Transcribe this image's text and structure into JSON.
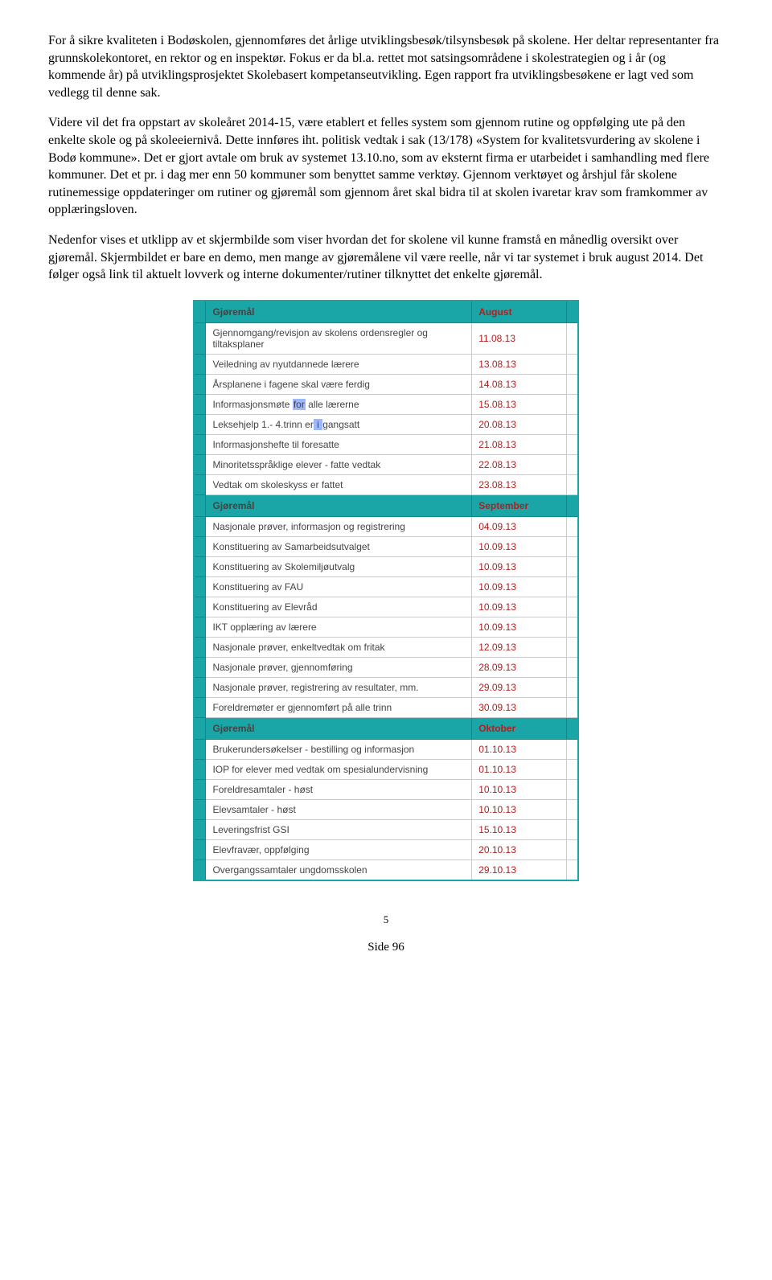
{
  "paragraphs": {
    "p1": "For å sikre kvaliteten i Bodøskolen, gjennomføres det årlige utviklingsbesøk/tilsynsbesøk på skolene. Her deltar representanter fra grunnskolekontoret, en rektor og en inspektør. Fokus er da bl.a. rettet mot satsingsområdene i skolestrategien og i år (og kommende år) på utviklingsprosjektet Skolebasert kompetanseutvikling. Egen rapport fra utviklingsbesøkene er lagt ved som vedlegg til denne sak.",
    "p2": "Videre vil det fra oppstart av skoleåret 2014-15, være etablert et felles system som gjennom rutine og oppfølging ute på den enkelte skole og på skoleeiernivå. Dette innføres iht. politisk vedtak i sak (13/178) «System for kvalitetsvurdering av skolene i Bodø kommune». Det er gjort avtale om bruk av systemet 13.10.no, som av eksternt firma er utarbeidet i samhandling med flere kommuner. Det et pr. i dag mer enn 50 kommuner som benyttet samme verktøy. Gjennom verktøyet og årshjul får skolene rutinemessige oppdateringer om rutiner og gjøremål som gjennom året skal bidra til at skolen ivaretar krav som framkommer av opplæringsloven.",
    "p3": "Nedenfor vises et utklipp av et skjermbilde som viser hvordan det for skolene vil kunne framstå en månedlig oversikt over gjøremål. Skjermbildet er bare en demo, men mange av gjøremålene vil være reelle, når vi tar systemet i bruk august 2014. Det følger også link til aktuelt lovverk og interne dokumenter/rutiner tilknyttet det enkelte gjøremål."
  },
  "table": {
    "header_task": "Gjøremål",
    "lead_glyph": "",
    "trail_glyph": "",
    "sections": [
      {
        "month": "August",
        "rows": [
          {
            "task": "Gjennomgang/revisjon av skolens ordensregler og tiltaksplaner",
            "date": "11.08.13"
          },
          {
            "task": "Veiledning av nyutdannede lærere",
            "date": "13.08.13"
          },
          {
            "task": "Årsplanene i fagene skal være ferdig",
            "date": "14.08.13"
          },
          {
            "task_html": "Informasjonsmøte <span class='highlight-for'>for</span> alle lærerne",
            "date": "15.08.13"
          },
          {
            "task_html": "Leksehjelp 1.- 4.trinn er<span class='cursor-mark'>&nbsp;i&nbsp;</span>gangsatt",
            "date": "20.08.13"
          },
          {
            "task": "Informasjonshefte til foresatte",
            "date": "21.08.13"
          },
          {
            "task": "Minoritetsspråklige elever - fatte vedtak",
            "date": "22.08.13"
          },
          {
            "task": "Vedtak om skoleskyss er fattet",
            "date": "23.08.13"
          }
        ]
      },
      {
        "month": "September",
        "rows": [
          {
            "task": "Nasjonale prøver, informasjon og registrering",
            "date": "04.09.13"
          },
          {
            "task": "Konstituering av Samarbeidsutvalget",
            "date": "10.09.13"
          },
          {
            "task": "Konstituering av Skolemiljøutvalg",
            "date": "10.09.13"
          },
          {
            "task": "Konstituering av FAU",
            "date": "10.09.13"
          },
          {
            "task": "Konstituering av Elevråd",
            "date": "10.09.13"
          },
          {
            "task": "IKT opplæring av lærere",
            "date": "10.09.13"
          },
          {
            "task": "Nasjonale prøver, enkeltvedtak om fritak",
            "date": "12.09.13"
          },
          {
            "task": "Nasjonale prøver, gjennomføring",
            "date": "28.09.13"
          },
          {
            "task": "Nasjonale prøver, registrering av resultater, mm.",
            "date": "29.09.13"
          },
          {
            "task": "Foreldremøter er gjennomført på alle trinn",
            "date": "30.09.13"
          }
        ]
      },
      {
        "month": "Oktober",
        "rows": [
          {
            "task": "Brukerundersøkelser - bestilling og informasjon",
            "date": "01.10.13"
          },
          {
            "task": "IOP for elever med vedtak om spesialundervisning",
            "date": "01.10.13"
          },
          {
            "task": "Foreldresamtaler - høst",
            "date": "10.10.13"
          },
          {
            "task": "Elevsamtaler - høst",
            "date": "10.10.13"
          },
          {
            "task": "Leveringsfrist GSI",
            "date": "15.10.13"
          },
          {
            "task": "Elevfravær, oppfølging",
            "date": "20.10.13"
          },
          {
            "task": "Overgangssamtaler ungdomsskolen",
            "date": "29.10.13"
          }
        ]
      }
    ]
  },
  "footer": {
    "page_num": "5",
    "side_label": "Side 96"
  }
}
